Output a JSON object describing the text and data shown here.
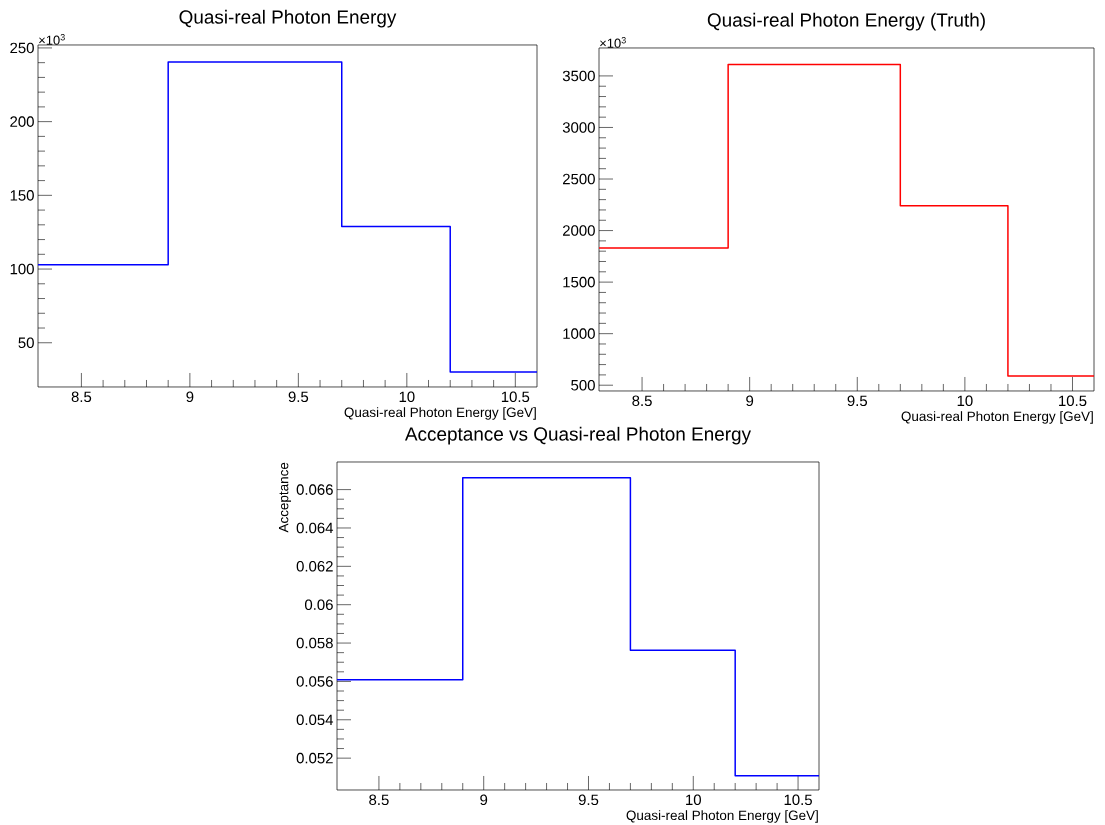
{
  "chart_data": [
    {
      "type": "histogram",
      "title": "Quasi-real Photon Energy",
      "xlabel": "Quasi-real Photon Energy [GeV]",
      "annotations": [
        "×10$^{3}$"
      ],
      "bins": [
        8.3,
        8.9,
        9.7,
        10.2,
        10.6
      ],
      "values": [
        102.9,
        240.5,
        128.8,
        30.2
      ],
      "color": "#0000ff",
      "xlim": [
        8.3,
        10.6
      ],
      "ylim": [
        20,
        252
      ],
      "xticks": [
        8.5,
        9,
        9.5,
        10,
        10.5
      ],
      "yticks": [
        50,
        100,
        150,
        200,
        250
      ]
    },
    {
      "type": "histogram",
      "title": "Quasi-real Photon Energy (Truth)",
      "xlabel": "Quasi-real Photon Energy [GeV]",
      "annotations": [
        "×10$^{3}$"
      ],
      "bins": [
        8.3,
        8.9,
        9.7,
        10.2,
        10.6
      ],
      "values": [
        1830,
        3610,
        2240,
        590
      ],
      "color": "#ff0000",
      "xlim": [
        8.3,
        10.6
      ],
      "ylim": [
        444,
        3771
      ],
      "xticks": [
        8.5,
        9,
        9.5,
        10,
        10.5
      ],
      "yticks": [
        500,
        1000,
        1500,
        2000,
        2500,
        3000,
        3500
      ]
    },
    {
      "type": "histogram",
      "title": "Acceptance vs Quasi-real Photon Energy",
      "xlabel": "Quasi-real Photon Energy [GeV]",
      "ylabel": "Acceptance",
      "bins": [
        8.3,
        8.9,
        9.7,
        10.2,
        10.6
      ],
      "values": [
        0.05609,
        0.06662,
        0.05763,
        0.05108
      ],
      "color": "#0000ff",
      "xlim": [
        8.3,
        10.6
      ],
      "ylim": [
        0.05034,
        0.06744
      ],
      "xticks": [
        8.5,
        9,
        9.5,
        10,
        10.5
      ],
      "yticks": [
        0.052,
        0.054,
        0.056,
        0.058,
        0.06,
        0.062,
        0.064,
        0.066
      ]
    }
  ]
}
